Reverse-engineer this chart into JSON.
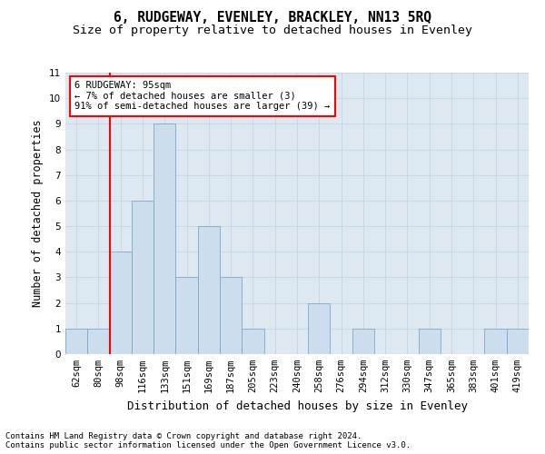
{
  "title1": "6, RUDGEWAY, EVENLEY, BRACKLEY, NN13 5RQ",
  "title2": "Size of property relative to detached houses in Evenley",
  "xlabel": "Distribution of detached houses by size in Evenley",
  "ylabel": "Number of detached properties",
  "categories": [
    "62sqm",
    "80sqm",
    "98sqm",
    "116sqm",
    "133sqm",
    "151sqm",
    "169sqm",
    "187sqm",
    "205sqm",
    "223sqm",
    "240sqm",
    "258sqm",
    "276sqm",
    "294sqm",
    "312sqm",
    "330sqm",
    "347sqm",
    "365sqm",
    "383sqm",
    "401sqm",
    "419sqm"
  ],
  "values": [
    1,
    1,
    4,
    6,
    9,
    3,
    5,
    3,
    1,
    0,
    0,
    2,
    0,
    1,
    0,
    0,
    1,
    0,
    0,
    1,
    1
  ],
  "bar_color": "#ccdded",
  "bar_edge_color": "#7aaac8",
  "red_line_index": 1.5,
  "annotation_text": "6 RUDGEWAY: 95sqm\n← 7% of detached houses are smaller (3)\n91% of semi-detached houses are larger (39) →",
  "annotation_box_facecolor": "white",
  "annotation_box_edgecolor": "red",
  "ylim": [
    0,
    11
  ],
  "yticks": [
    0,
    1,
    2,
    3,
    4,
    5,
    6,
    7,
    8,
    9,
    10,
    11
  ],
  "grid_color": "#c8d8ea",
  "facecolor": "#dde8f0",
  "footer1": "Contains HM Land Registry data © Crown copyright and database right 2024.",
  "footer2": "Contains public sector information licensed under the Open Government Licence v3.0.",
  "title1_fontsize": 10.5,
  "title2_fontsize": 9.5,
  "xlabel_fontsize": 9,
  "ylabel_fontsize": 8.5,
  "tick_fontsize": 7.5,
  "annotation_fontsize": 7.5,
  "footer_fontsize": 6.5
}
